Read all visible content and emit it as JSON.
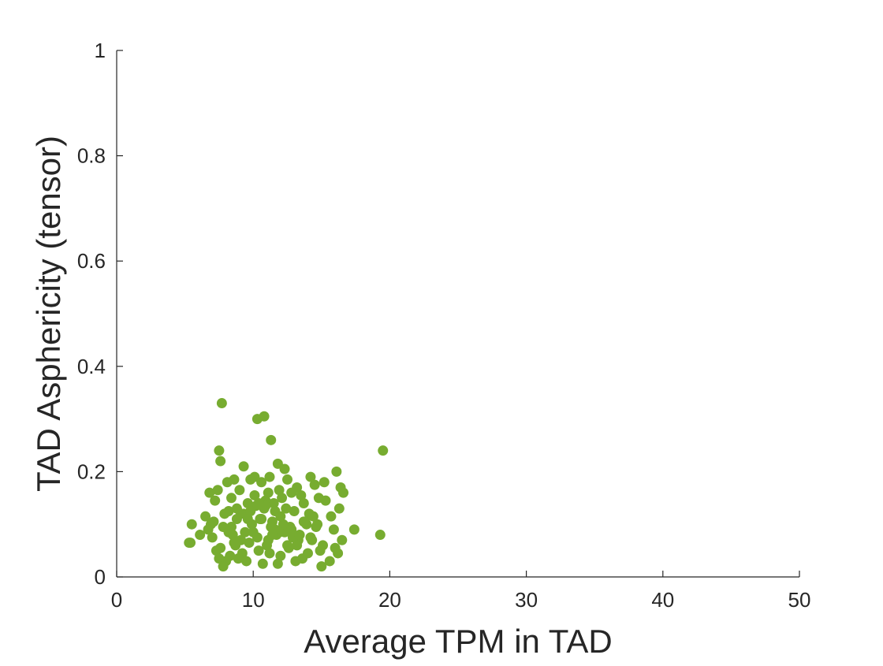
{
  "chart_data": {
    "type": "scatter",
    "title": "",
    "xlabel": "Average TPM in TAD",
    "ylabel": "TAD Asphericity (tensor)",
    "xlim": [
      0,
      50
    ],
    "ylim": [
      0,
      1
    ],
    "xticks": [
      0,
      10,
      20,
      30,
      40,
      50
    ],
    "yticks": [
      0,
      0.2,
      0.4,
      0.6,
      0.8,
      1
    ],
    "xtick_labels": [
      "0",
      "10",
      "20",
      "30",
      "40",
      "50"
    ],
    "ytick_labels": [
      "0",
      "0.2",
      "0.4",
      "0.6",
      "0.8",
      "1"
    ],
    "grid": false,
    "marker_color": "#77AC30",
    "series": [
      {
        "x": [
          7.7,
          10.3,
          10.8,
          11.3,
          7.5,
          7.6,
          19.5,
          11.8,
          9.3,
          12.3,
          16.1,
          14.2,
          10.1,
          11.2,
          9.8,
          12.5,
          15.2,
          16.4,
          14.5,
          13.2,
          10.6,
          11.9,
          8.1,
          8.6,
          7.4,
          6.8,
          9.0,
          12.8,
          11.1,
          13.5,
          16.6,
          15.3,
          14.8,
          16.3,
          13.7,
          12.1,
          11.5,
          10.9,
          8.4,
          7.2,
          9.6,
          10.2,
          12.4,
          13.0,
          15.7,
          14.1,
          11.6,
          9.1,
          8.2,
          7.9,
          6.5,
          5.5,
          6.9,
          8.8,
          10.5,
          11.4,
          12.2,
          13.9,
          14.6,
          15.9,
          17.4,
          16.5,
          19.3,
          6.1,
          5.4,
          5.3,
          7.0,
          8.5,
          9.4,
          10.0,
          11.7,
          12.9,
          13.3,
          14.3,
          15.1,
          16.0,
          16.2,
          14.9,
          12.6,
          11.0,
          9.7,
          8.7,
          7.6,
          7.3,
          7.5,
          8.3,
          9.2,
          10.4,
          11.2,
          12.0,
          13.6,
          14.0,
          15.0,
          15.6,
          13.1,
          11.8,
          10.7,
          9.5,
          8.9,
          8.0,
          7.8,
          10.6,
          12.7,
          13.8,
          14.4,
          9.9,
          11.3,
          12.3,
          10.3,
          9.1,
          8.6,
          11.6,
          12.5,
          10.8,
          9.3,
          13.4,
          14.7,
          8.4,
          7.1,
          6.7,
          9.8,
          10.9,
          12.0,
          11.1,
          13.2,
          14.2,
          10.1,
          8.8,
          9.6,
          11.9,
          12.8,
          13.7,
          7.8,
          8.2,
          10.4,
          11.4
        ],
        "y": [
          0.33,
          0.3,
          0.305,
          0.26,
          0.24,
          0.22,
          0.24,
          0.215,
          0.21,
          0.205,
          0.2,
          0.19,
          0.19,
          0.19,
          0.185,
          0.185,
          0.18,
          0.17,
          0.175,
          0.17,
          0.18,
          0.165,
          0.18,
          0.185,
          0.165,
          0.16,
          0.165,
          0.16,
          0.16,
          0.155,
          0.16,
          0.145,
          0.15,
          0.13,
          0.14,
          0.15,
          0.14,
          0.145,
          0.15,
          0.145,
          0.14,
          0.135,
          0.13,
          0.125,
          0.115,
          0.12,
          0.125,
          0.12,
          0.125,
          0.12,
          0.115,
          0.1,
          0.1,
          0.11,
          0.11,
          0.105,
          0.1,
          0.1,
          0.095,
          0.09,
          0.09,
          0.07,
          0.08,
          0.08,
          0.065,
          0.065,
          0.075,
          0.08,
          0.085,
          0.085,
          0.08,
          0.075,
          0.07,
          0.07,
          0.06,
          0.055,
          0.045,
          0.05,
          0.055,
          0.06,
          0.065,
          0.06,
          0.055,
          0.05,
          0.035,
          0.04,
          0.045,
          0.05,
          0.045,
          0.04,
          0.035,
          0.045,
          0.02,
          0.03,
          0.03,
          0.025,
          0.025,
          0.03,
          0.035,
          0.03,
          0.02,
          0.11,
          0.095,
          0.105,
          0.115,
          0.1,
          0.095,
          0.085,
          0.075,
          0.07,
          0.065,
          0.09,
          0.06,
          0.13,
          0.12,
          0.08,
          0.1,
          0.095,
          0.105,
          0.09,
          0.125,
          0.135,
          0.115,
          0.07,
          0.06,
          0.075,
          0.155,
          0.13,
          0.11,
          0.085,
          0.09,
          0.105,
          0.095,
          0.085,
          0.14,
          0.08
        ]
      }
    ]
  }
}
